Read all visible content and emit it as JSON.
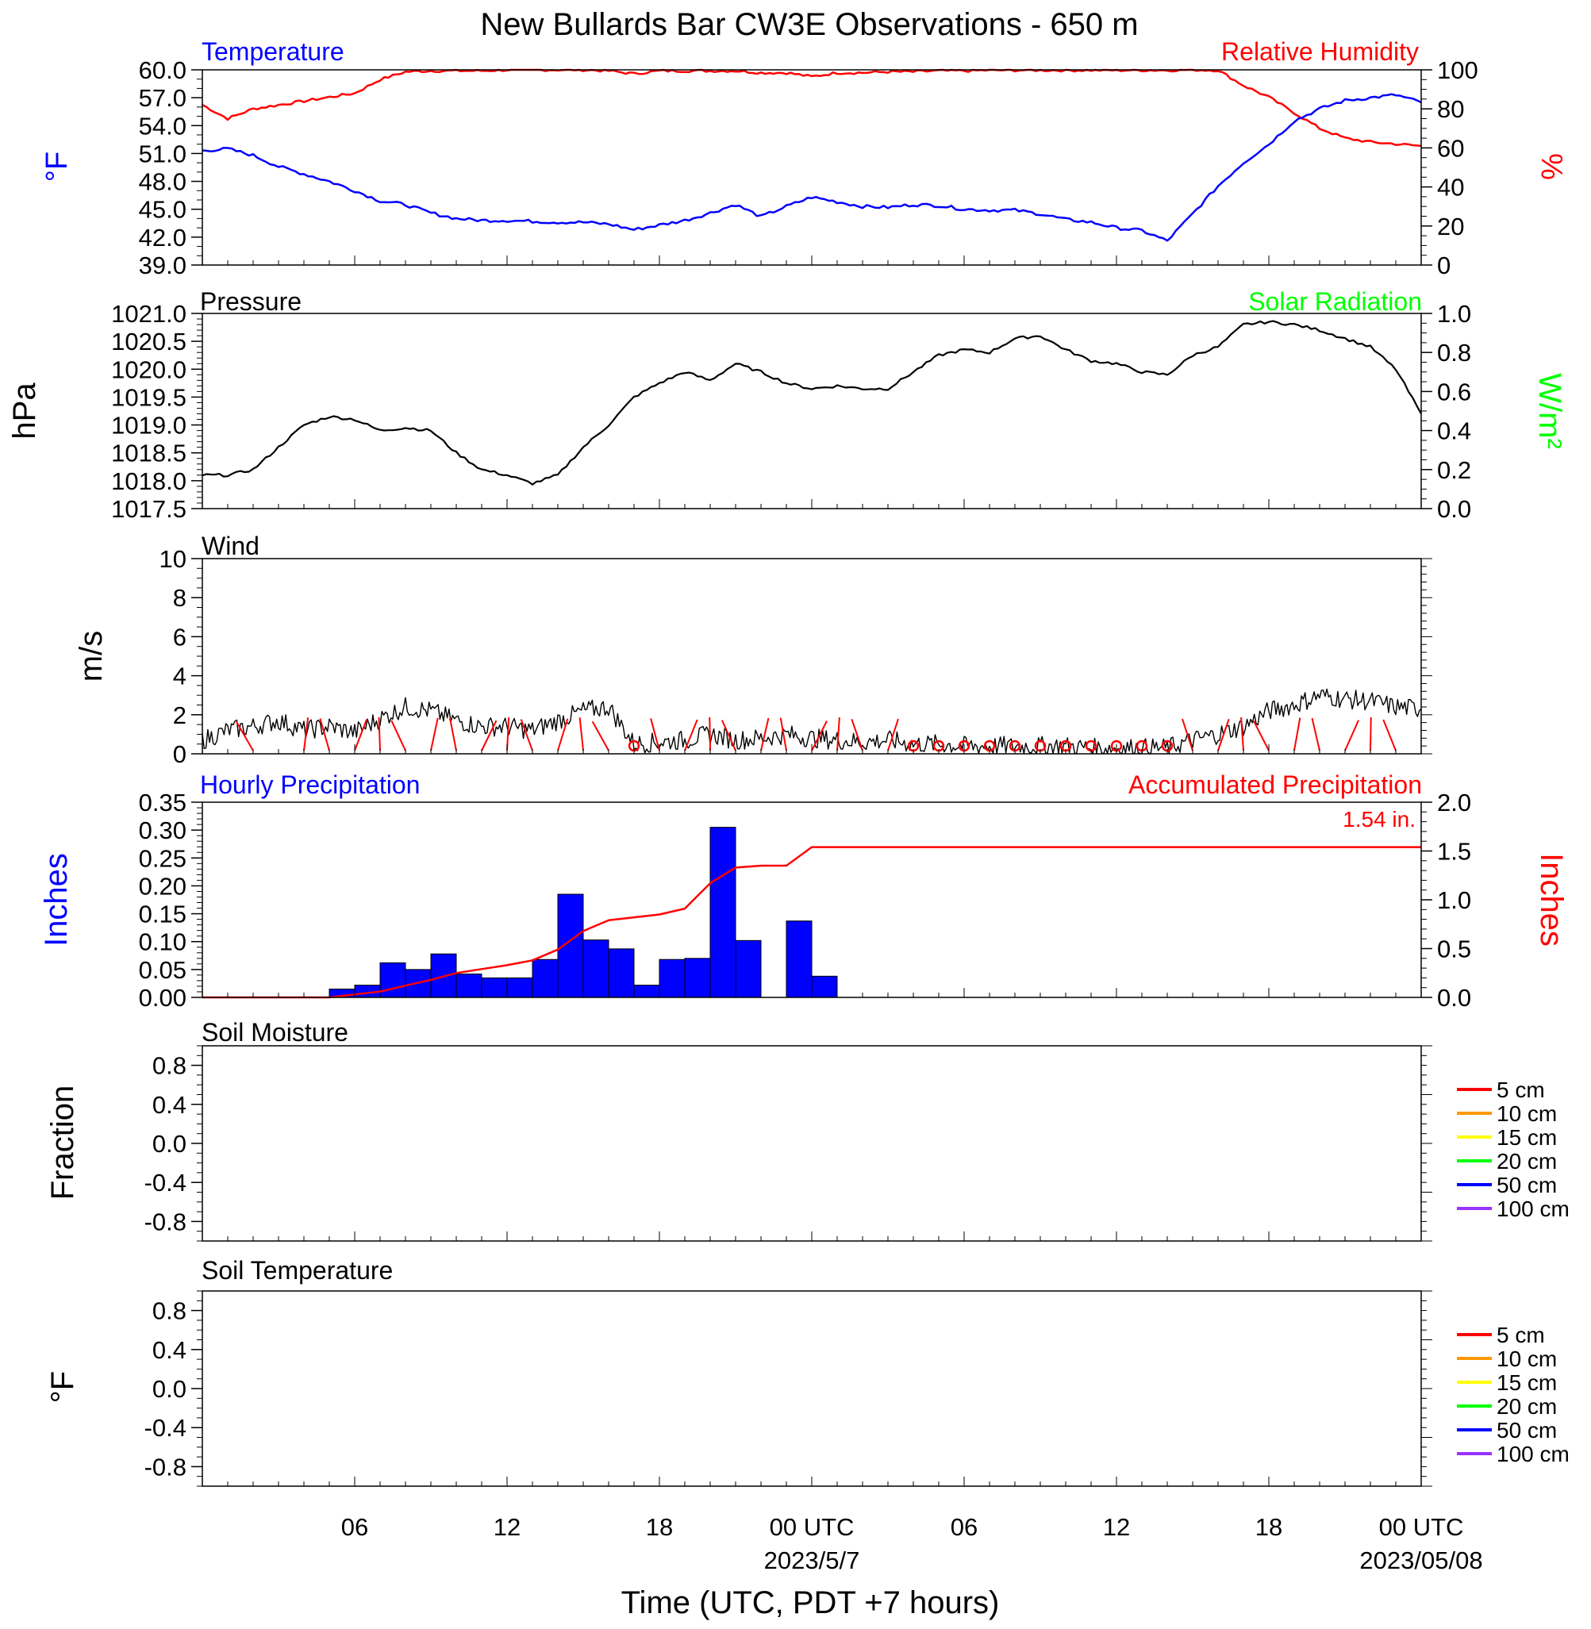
{
  "title": "New Bullards Bar CW3E Observations - 650 m",
  "xaxis": {
    "title": "Time (UTC, PDT +7 hours)",
    "hours_span": 48,
    "tick_labels": [
      {
        "hour": 6,
        "label": "06",
        "sub": ""
      },
      {
        "hour": 12,
        "label": "12",
        "sub": ""
      },
      {
        "hour": 18,
        "label": "18",
        "sub": ""
      },
      {
        "hour": 24,
        "label": "00 UTC",
        "sub": "2023/5/7"
      },
      {
        "hour": 30,
        "label": "06",
        "sub": ""
      },
      {
        "hour": 36,
        "label": "12",
        "sub": ""
      },
      {
        "hour": 42,
        "label": "18",
        "sub": ""
      },
      {
        "hour": 48,
        "label": "00 UTC",
        "sub": "2023/05/08"
      }
    ]
  },
  "panels": {
    "temperature": {
      "left_title": "Temperature",
      "right_title": "Relative Humidity",
      "left_axis_label": "°F",
      "right_axis_label": "%",
      "left_ticks": [
        "60.0",
        "57.0",
        "54.0",
        "51.0",
        "48.0",
        "45.0",
        "42.0",
        "39.0"
      ],
      "right_ticks": [
        "100",
        "80",
        "60",
        "40",
        "20",
        "0"
      ],
      "left_color": "#0000ff",
      "right_color": "#ff0000"
    },
    "pressure": {
      "left_title": "Pressure",
      "right_title": "Solar Radiation",
      "left_axis_label": "hPa",
      "right_axis_label": "W/m²",
      "left_ticks": [
        "1021.0",
        "1020.5",
        "1020.0",
        "1019.5",
        "1019.0",
        "1018.5",
        "1018.0",
        "1017.5"
      ],
      "right_ticks": [
        "1.0",
        "0.8",
        "0.6",
        "0.4",
        "0.2",
        "0.0"
      ],
      "left_color": "#000000",
      "right_color": "#00ff00"
    },
    "wind": {
      "left_title": "Wind",
      "left_axis_label": "m/s",
      "left_ticks": [
        "10",
        "8",
        "6",
        "4",
        "2",
        "0"
      ],
      "barb_color": "#ff0000"
    },
    "precipitation": {
      "left_title": "Hourly Precipitation",
      "right_title": "Accumulated Precipitation",
      "total_label": "1.54 in.",
      "left_axis_label": "Inches",
      "right_axis_label": "Inches",
      "left_ticks": [
        "0.35",
        "0.30",
        "0.25",
        "0.20",
        "0.15",
        "0.10",
        "0.05",
        "0.00"
      ],
      "right_ticks": [
        "2.0",
        "1.5",
        "1.0",
        "0.5",
        "0.0"
      ],
      "left_color": "#0000ff",
      "right_color": "#ff0000"
    },
    "soil_moisture": {
      "left_title": "Soil Moisture",
      "left_axis_label": "Fraction",
      "left_ticks": [
        "0.8",
        "0.4",
        "0.0",
        "-0.4",
        "-0.8"
      ]
    },
    "soil_temperature": {
      "left_title": "Soil Temperature",
      "left_axis_label": "°F",
      "left_ticks": [
        "0.8",
        "0.4",
        "0.0",
        "-0.4",
        "-0.8"
      ]
    }
  },
  "legend": [
    {
      "label": "5 cm",
      "color": "#ff0000"
    },
    {
      "label": "10 cm",
      "color": "#ff9900"
    },
    {
      "label": "15 cm",
      "color": "#ffff00"
    },
    {
      "label": "20 cm",
      "color": "#00ff00"
    },
    {
      "label": "50 cm",
      "color": "#0000ff"
    },
    {
      "label": "100 cm",
      "color": "#9933ff"
    }
  ],
  "chart_data": [
    {
      "type": "line",
      "title": "Temperature",
      "ylabel": "°F",
      "ylim": [
        39.0,
        60.0
      ],
      "x_hours": [
        0,
        1,
        2,
        3,
        4,
        5,
        6,
        7,
        8,
        9,
        10,
        11,
        12,
        13,
        14,
        15,
        16,
        17,
        18,
        19,
        20,
        21,
        22,
        23,
        24,
        25,
        26,
        27,
        28,
        29,
        30,
        31,
        32,
        33,
        34,
        35,
        36,
        37,
        38,
        39,
        40,
        41,
        42,
        43,
        44,
        45,
        46,
        47,
        48
      ],
      "series": [
        {
          "name": "Temperature",
          "color": "#0000ff",
          "values": [
            51.3,
            51.5,
            50.8,
            49.6,
            48.8,
            48.0,
            47.0,
            45.9,
            45.5,
            44.6,
            44.0,
            43.8,
            43.8,
            43.7,
            43.6,
            43.6,
            43.4,
            42.8,
            43.3,
            43.8,
            44.6,
            45.5,
            44.2,
            45.3,
            46.3,
            45.8,
            45.3,
            45.2,
            45.5,
            45.4,
            45.0,
            44.9,
            44.9,
            44.5,
            43.9,
            43.6,
            43.0,
            42.7,
            41.6,
            44.5,
            47.5,
            50.0,
            52.0,
            54.5,
            55.8,
            56.7,
            57.0,
            57.3,
            56.5
          ]
        },
        {
          "name": "Relative Humidity",
          "color": "#ff0000",
          "values": [
            82,
            75,
            80,
            82,
            84,
            86,
            88,
            95,
            99,
            99.5,
            99.5,
            99.5,
            100,
            100,
            100,
            100,
            99.5,
            98,
            99.5,
            99.5,
            99.5,
            99.5,
            98.5,
            98.5,
            96.5,
            98.5,
            98.5,
            99,
            99,
            99.5,
            99.5,
            99.8,
            99.8,
            99.8,
            99.8,
            99.8,
            99.8,
            99.8,
            99.8,
            100,
            99.8,
            92,
            86,
            78,
            70,
            65,
            63,
            62,
            61
          ]
        }
      ]
    },
    {
      "type": "line",
      "title": "Pressure",
      "ylabel": "hPa",
      "ylim": [
        1017.5,
        1021.0
      ],
      "x_hours": [
        0,
        1,
        2,
        3,
        4,
        5,
        6,
        7,
        8,
        9,
        10,
        11,
        12,
        13,
        14,
        15,
        16,
        17,
        18,
        19,
        20,
        21,
        22,
        23,
        24,
        25,
        26,
        27,
        28,
        29,
        30,
        31,
        32,
        33,
        34,
        35,
        36,
        37,
        38,
        39,
        40,
        41,
        42,
        43,
        44,
        45,
        46,
        47,
        48
      ],
      "series": [
        {
          "name": "Pressure",
          "color": "#000000",
          "values": [
            1018.1,
            1018.1,
            1018.2,
            1018.6,
            1019.0,
            1019.15,
            1019.1,
            1018.9,
            1018.95,
            1018.9,
            1018.5,
            1018.2,
            1018.1,
            1017.95,
            1018.1,
            1018.6,
            1019.0,
            1019.5,
            1019.75,
            1019.95,
            1019.8,
            1020.1,
            1019.95,
            1019.75,
            1019.65,
            1019.7,
            1019.65,
            1019.65,
            1019.95,
            1020.25,
            1020.35,
            1020.3,
            1020.55,
            1020.6,
            1020.35,
            1020.15,
            1020.1,
            1019.95,
            1019.9,
            1020.25,
            1020.4,
            1020.8,
            1020.85,
            1020.8,
            1020.7,
            1020.55,
            1020.4,
            1020.0,
            1019.2
          ]
        }
      ]
    },
    {
      "type": "line",
      "title": "Wind",
      "ylabel": "m/s",
      "ylim": [
        0,
        10
      ],
      "x_hours": [
        0,
        1,
        2,
        3,
        4,
        5,
        6,
        7,
        8,
        9,
        10,
        11,
        12,
        13,
        14,
        15,
        16,
        17,
        18,
        19,
        20,
        21,
        22,
        23,
        24,
        25,
        26,
        27,
        28,
        29,
        30,
        31,
        32,
        33,
        34,
        35,
        36,
        37,
        38,
        39,
        40,
        41,
        42,
        43,
        44,
        45,
        46,
        47,
        48
      ],
      "series": [
        {
          "name": "Wind speed",
          "color": "#000000",
          "values": [
            0.5,
            1.0,
            1.2,
            1.5,
            1.0,
            1.2,
            0.9,
            1.6,
            2.2,
            2.0,
            1.5,
            1.2,
            1.2,
            1.0,
            1.5,
            2.0,
            2.2,
            0.3,
            0.4,
            0.5,
            0.8,
            0.5,
            0.6,
            0.8,
            0.6,
            0.5,
            0.4,
            0.5,
            0.3,
            0.3,
            0.2,
            0.2,
            0.2,
            0.2,
            0.2,
            0.1,
            0.1,
            0.1,
            0.1,
            0.5,
            0.8,
            1.2,
            2.0,
            2.3,
            2.8,
            2.6,
            2.5,
            2.2,
            2.1
          ]
        }
      ],
      "barbs_hours": [
        2,
        4,
        5,
        6,
        7,
        8,
        9,
        10,
        11,
        12,
        13,
        14,
        15,
        16,
        17,
        18,
        19,
        20,
        21,
        22,
        23,
        24,
        25,
        26,
        27,
        28,
        29,
        30,
        31,
        32,
        33,
        34,
        35,
        36,
        37,
        38,
        39,
        40,
        41,
        42,
        43,
        44,
        45,
        46,
        47
      ]
    },
    {
      "type": "bar",
      "title": "Hourly Precipitation",
      "ylabel": "Inches",
      "ylim": [
        0,
        0.35
      ],
      "x_hours": [
        0,
        1,
        2,
        3,
        4,
        5,
        6,
        7,
        8,
        9,
        10,
        11,
        12,
        13,
        14,
        15,
        16,
        17,
        18,
        19,
        20,
        21,
        22,
        23,
        24,
        25,
        26,
        27,
        28,
        29,
        30,
        31,
        32,
        33,
        34,
        35,
        36,
        37,
        38,
        39,
        40,
        41,
        42,
        43,
        44,
        45,
        46,
        47
      ],
      "values": [
        0,
        0,
        0,
        0,
        0,
        0.015,
        0.022,
        0.062,
        0.05,
        0.078,
        0.042,
        0.035,
        0.035,
        0.068,
        0.185,
        0.103,
        0.087,
        0.022,
        0.068,
        0.07,
        0.305,
        0.102,
        0,
        0.137,
        0.038,
        0,
        0,
        0,
        0,
        0,
        0,
        0,
        0,
        0,
        0,
        0,
        0,
        0,
        0,
        0,
        0,
        0,
        0,
        0,
        0,
        0,
        0,
        0
      ]
    },
    {
      "type": "line",
      "title": "Accumulated Precipitation",
      "ylabel": "Inches",
      "ylim": [
        0,
        2.0
      ],
      "x_hours": [
        0,
        4,
        5,
        6,
        7,
        8,
        9,
        10,
        11,
        12,
        13,
        14,
        15,
        16,
        17,
        18,
        19,
        20,
        21,
        22,
        23,
        24,
        48
      ],
      "values": [
        0,
        0,
        0,
        0.03,
        0.06,
        0.12,
        0.18,
        0.25,
        0.29,
        0.33,
        0.38,
        0.49,
        0.68,
        0.79,
        0.82,
        0.85,
        0.91,
        1.17,
        1.33,
        1.35,
        1.35,
        1.54,
        1.54
      ],
      "total_label": "1.54 in."
    },
    {
      "type": "line",
      "title": "Soil Moisture",
      "ylabel": "Fraction",
      "ylim": [
        -1.0,
        1.0
      ],
      "series": []
    },
    {
      "type": "line",
      "title": "Soil Temperature",
      "ylabel": "°F",
      "ylim": [
        -1.0,
        1.0
      ],
      "series": []
    }
  ]
}
